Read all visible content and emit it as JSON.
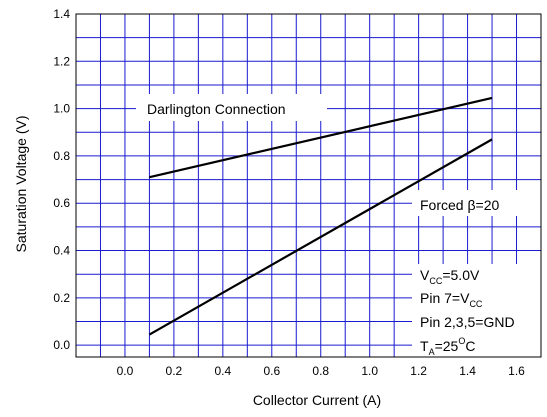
{
  "chart_data": {
    "type": "line",
    "xlabel": "Collector Current (A)",
    "ylabel": "Saturation Voltage (V)",
    "xlim": [
      -0.2,
      1.7
    ],
    "ylim": [
      -0.05,
      1.4
    ],
    "x_ticks": [
      "0.0",
      "0.2",
      "0.4",
      "0.6",
      "0.8",
      "1.0",
      "1.2",
      "1.4",
      "1.6"
    ],
    "y_ticks": [
      "0.0",
      "0.2",
      "0.4",
      "0.6",
      "0.8",
      "1.0",
      "1.2",
      "1.4"
    ],
    "grid": true,
    "grid_minor_x_step": 0.1,
    "grid_minor_y_step": 0.1,
    "series": [
      {
        "name": "Darlington Connection",
        "x": [
          0.1,
          1.5
        ],
        "y": [
          0.71,
          1.045
        ]
      },
      {
        "name": "Forced β=20",
        "x": [
          0.1,
          1.5
        ],
        "y": [
          0.045,
          0.87
        ]
      }
    ],
    "annotations": {
      "darlington": "Darlington Connection",
      "forced_prefix": "Forced ",
      "forced_beta": "β",
      "forced_suffix": "=20",
      "vcc_main": "V",
      "vcc_sub": "CC",
      "vcc_value": "=5.0V",
      "pin7_prefix": "Pin 7=V",
      "pin7_sub": "CC",
      "pin235": "Pin 2,3,5=GND",
      "ta_main": "T",
      "ta_sub": "A",
      "ta_value": "=25",
      "ta_sup": "O",
      "ta_unit": "C"
    },
    "line_color": "#000000",
    "grid_color": "#1a1ad0"
  }
}
